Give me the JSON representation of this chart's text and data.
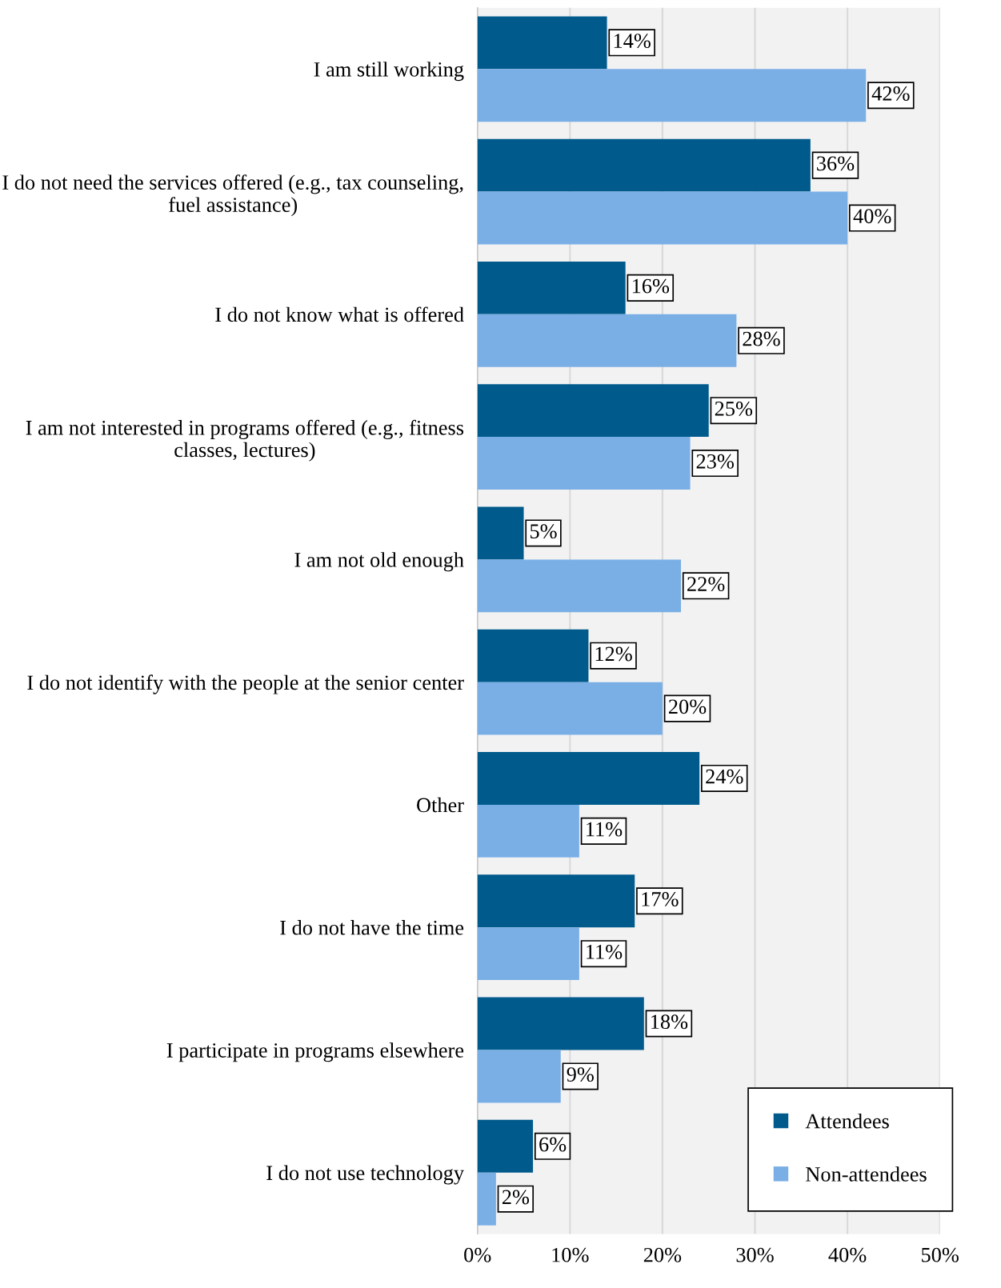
{
  "chart_data": {
    "type": "bar",
    "orientation": "horizontal",
    "categories": [
      "I am still working",
      "I do not need the services offered (e.g., tax counseling, fuel assistance)",
      "I do not know what is offered",
      "I am not interested in programs offered (e.g., fitness classes, lectures)",
      "I am not old enough",
      "I do not identify with the people at the senior center",
      "Other",
      "I do not have the time",
      "I participate in programs elsewhere",
      "I do not use technology"
    ],
    "series": [
      {
        "name": "Attendees",
        "color": "#005a8c",
        "values": [
          14,
          36,
          16,
          25,
          5,
          12,
          24,
          17,
          18,
          6
        ],
        "value_labels": [
          "14%",
          "36%",
          "16%",
          "25%",
          "5%",
          "12%",
          "24%",
          "17%",
          "18%",
          "6%"
        ]
      },
      {
        "name": "Non-attendees",
        "color": "#7aafe6",
        "values": [
          42,
          40,
          28,
          23,
          22,
          20,
          11,
          11,
          9,
          2
        ],
        "value_labels": [
          "42%",
          "40%",
          "28%",
          "23%",
          "22%",
          "20%",
          "11%",
          "11%",
          "9%",
          "2%"
        ]
      }
    ],
    "xlim": [
      0,
      50
    ],
    "xticks": [
      {
        "value": 0,
        "label": "0%"
      },
      {
        "value": 10,
        "label": "10%"
      },
      {
        "value": 20,
        "label": "20%"
      },
      {
        "value": 30,
        "label": "30%"
      },
      {
        "value": 40,
        "label": "40%"
      },
      {
        "value": 50,
        "label": "50%"
      }
    ],
    "grid": "x",
    "legend": "bottom right"
  }
}
